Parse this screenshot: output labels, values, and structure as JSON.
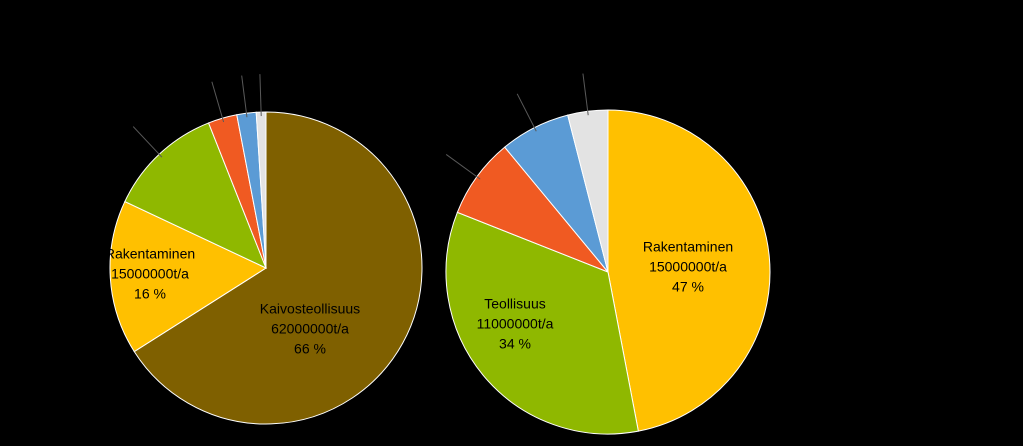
{
  "chart_data": [
    {
      "type": "pie",
      "categories": [
        "Kaivosteollisuus",
        "Rakentaminen",
        null,
        null,
        null,
        null
      ],
      "values": [
        66,
        16,
        12,
        3,
        2,
        1
      ],
      "value_labels": [
        "66 %",
        "16 %",
        null,
        null,
        null,
        null
      ],
      "amount_labels": [
        "62000000t/a",
        "15000000t/a",
        null,
        null,
        null,
        null
      ],
      "colors": [
        "#7f6000",
        "#ffc000",
        "#8fb800",
        "#f05a22",
        "#5b9bd5",
        "#e3e3e3"
      ]
    },
    {
      "type": "pie",
      "categories": [
        "Rakentaminen",
        "Teollisuus",
        null,
        null,
        null
      ],
      "values": [
        47,
        34,
        8,
        7,
        4
      ],
      "value_labels": [
        "47 %",
        "34 %",
        null,
        null,
        null
      ],
      "amount_labels": [
        "15000000t/a",
        "11000000t/a",
        null,
        null,
        null
      ],
      "colors": [
        "#ffc000",
        "#8fb800",
        "#f05a22",
        "#5b9bd5",
        "#e3e3e3"
      ]
    }
  ]
}
